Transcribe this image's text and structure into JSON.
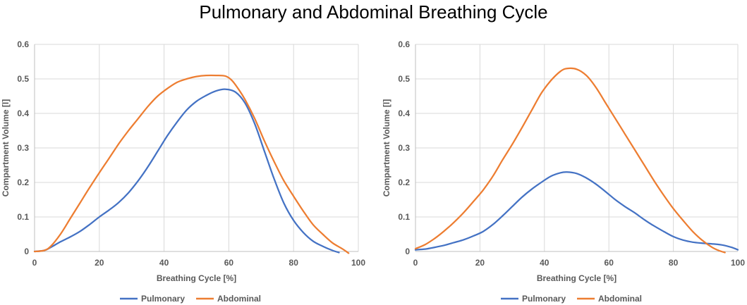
{
  "main_title": "Pulmonary and Abdominal Breathing Cycle",
  "colors": {
    "pulmonary": "#4472C4",
    "abdominal": "#ED7D31",
    "grid": "#D9D9D9",
    "axis": "#BFBFBF"
  },
  "chart_data": [
    {
      "type": "line",
      "title": "",
      "xlabel": "Breathing Cycle [%]",
      "ylabel": "Compartment Volume [l]",
      "xlim": [
        0,
        100
      ],
      "ylim": [
        0,
        0.6
      ],
      "xticks": [
        0,
        20,
        40,
        60,
        80,
        100
      ],
      "yticks": [
        0,
        0.1,
        0.2,
        0.3,
        0.4,
        0.5,
        0.6
      ],
      "xtick_labels": [
        "0",
        "20",
        "40",
        "60",
        "80",
        "100"
      ],
      "ytick_labels": [
        "0",
        "0.1",
        "0.2",
        "0.3",
        "0.4",
        "0.5",
        "0.6"
      ],
      "grid": true,
      "legend": "bottom",
      "series": [
        {
          "name": "Pulmonary",
          "color": "#4472C4",
          "x": [
            0,
            3,
            5,
            8,
            11,
            14,
            17,
            20,
            23,
            26,
            29,
            32,
            35,
            38,
            41,
            44,
            47,
            50,
            53,
            56,
            59,
            62,
            65,
            68,
            71,
            74,
            77,
            80,
            83,
            86,
            89,
            92,
            94
          ],
          "y": [
            0,
            0.003,
            0.012,
            0.028,
            0.042,
            0.058,
            0.078,
            0.1,
            0.12,
            0.142,
            0.17,
            0.205,
            0.245,
            0.29,
            0.335,
            0.375,
            0.41,
            0.435,
            0.452,
            0.465,
            0.47,
            0.462,
            0.43,
            0.37,
            0.29,
            0.21,
            0.14,
            0.09,
            0.055,
            0.03,
            0.015,
            0.003,
            -0.003
          ]
        },
        {
          "name": "Abdominal",
          "color": "#ED7D31",
          "x": [
            0,
            3,
            5,
            8,
            11,
            14,
            17,
            20,
            23,
            26,
            29,
            32,
            35,
            38,
            41,
            44,
            47,
            50,
            53,
            56,
            59,
            61,
            63,
            65,
            68,
            71,
            74,
            77,
            80,
            83,
            86,
            89,
            92,
            95,
            97
          ],
          "y": [
            0,
            0.003,
            0.015,
            0.05,
            0.095,
            0.14,
            0.185,
            0.228,
            0.27,
            0.312,
            0.35,
            0.385,
            0.42,
            0.45,
            0.472,
            0.49,
            0.5,
            0.507,
            0.51,
            0.51,
            0.508,
            0.495,
            0.47,
            0.44,
            0.385,
            0.32,
            0.26,
            0.205,
            0.16,
            0.117,
            0.078,
            0.05,
            0.025,
            0.008,
            -0.005
          ]
        }
      ]
    },
    {
      "type": "line",
      "title": "",
      "xlabel": "Breathing Cycle [%]",
      "ylabel": "Compartment Volume [l]",
      "xlim": [
        0,
        100
      ],
      "ylim": [
        0,
        0.6
      ],
      "xticks": [
        0,
        20,
        40,
        60,
        80,
        100
      ],
      "yticks": [
        0,
        0.1,
        0.2,
        0.3,
        0.4,
        0.5,
        0.6
      ],
      "xtick_labels": [
        "0",
        "20",
        "40",
        "60",
        "80",
        "100"
      ],
      "ytick_labels": [
        "0",
        "0.1",
        "0.2",
        "0.3",
        "0.4",
        "0.5",
        "0.6"
      ],
      "grid": true,
      "legend": "bottom",
      "series": [
        {
          "name": "Pulmonary",
          "color": "#4472C4",
          "x": [
            0,
            3,
            6,
            9,
            12,
            15,
            18,
            21,
            24,
            27,
            30,
            33,
            36,
            39,
            42,
            45,
            47,
            50,
            53,
            56,
            59,
            62,
            65,
            68,
            71,
            74,
            77,
            80,
            83,
            86,
            89,
            92,
            95,
            98,
            100
          ],
          "y": [
            0.005,
            0.007,
            0.012,
            0.018,
            0.026,
            0.034,
            0.045,
            0.058,
            0.078,
            0.103,
            0.13,
            0.157,
            0.18,
            0.2,
            0.218,
            0.228,
            0.23,
            0.226,
            0.213,
            0.195,
            0.173,
            0.15,
            0.13,
            0.112,
            0.092,
            0.074,
            0.058,
            0.043,
            0.033,
            0.027,
            0.024,
            0.022,
            0.019,
            0.012,
            0.005
          ]
        },
        {
          "name": "Abdominal",
          "color": "#ED7D31",
          "x": [
            0,
            3,
            6,
            9,
            12,
            15,
            18,
            21,
            24,
            27,
            30,
            33,
            36,
            39,
            42,
            45,
            47,
            50,
            53,
            56,
            59,
            62,
            65,
            68,
            71,
            74,
            77,
            80,
            83,
            86,
            89,
            92,
            94,
            96
          ],
          "y": [
            0.008,
            0.02,
            0.038,
            0.06,
            0.085,
            0.113,
            0.145,
            0.178,
            0.218,
            0.265,
            0.31,
            0.358,
            0.408,
            0.458,
            0.495,
            0.522,
            0.53,
            0.528,
            0.51,
            0.475,
            0.43,
            0.385,
            0.34,
            0.295,
            0.25,
            0.205,
            0.163,
            0.124,
            0.09,
            0.058,
            0.032,
            0.012,
            0.003,
            -0.003
          ]
        }
      ]
    }
  ]
}
